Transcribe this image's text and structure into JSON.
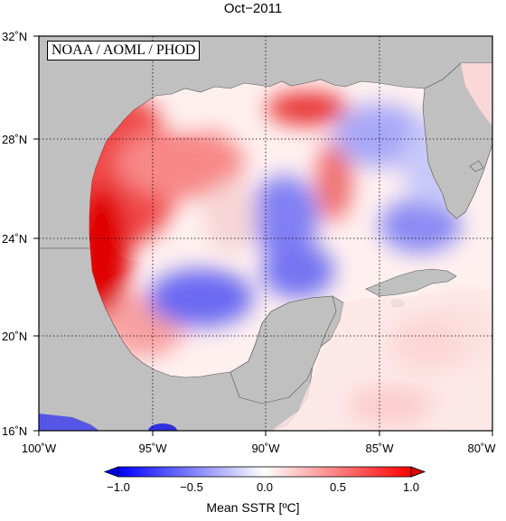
{
  "title": "Oct−2011",
  "source_label": "NOAA / AOML / PHOD",
  "map": {
    "lon_range": [
      -100,
      -80
    ],
    "lat_range": [
      16,
      32
    ],
    "lat_labels": [
      "32˚N",
      "28˚N",
      "24˚N",
      "20˚N",
      "16˚N"
    ],
    "lon_labels": [
      "100˚W",
      "95˚W",
      "90˚W",
      "85˚W",
      "80˚W"
    ],
    "grid": "dotted, every 5° lon and 4° lat",
    "land_color": "#c0c0c0"
  },
  "colorbar": {
    "title": "Mean SSTR [ºC]",
    "ticks": [
      "−1.0",
      "−0.5",
      "0.0",
      "0.5",
      "1.0"
    ],
    "min": -1.0,
    "max": 1.0,
    "colors": [
      "#0000ff",
      "#ffffff",
      "#ff0000"
    ]
  }
}
